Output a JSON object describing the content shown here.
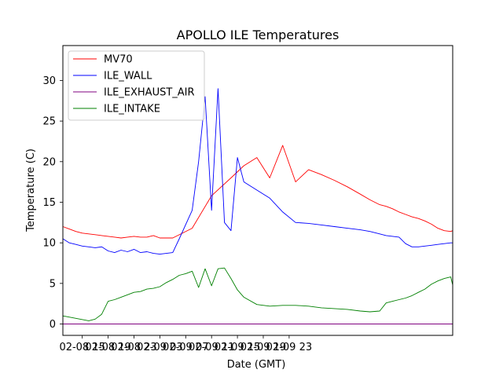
{
  "chart_data": {
    "type": "line",
    "title": "APOLLO ILE Temperatures",
    "xlabel": "Date (GMT)",
    "ylabel": "Temperature (C)",
    "x_unit": "hours since 2008-02-08 12:00 GMT",
    "xlim": [
      0,
      60.3
    ],
    "ylim": [
      -1.4,
      34.3
    ],
    "x_ticks": [
      {
        "value": 3,
        "label": "02-08 15"
      },
      {
        "value": 7,
        "label": "02-08 19"
      },
      {
        "value": 11,
        "label": "02-08 23"
      },
      {
        "value": 15,
        "label": "02-09 03"
      },
      {
        "value": 19,
        "label": "02-09 07"
      },
      {
        "value": 23,
        "label": "02-09 11"
      },
      {
        "value": 27,
        "label": "02-09 15"
      },
      {
        "value": 31,
        "label": "02-09 19"
      },
      {
        "value": 35,
        "label": "02-09 23"
      }
    ],
    "y_ticks": [
      {
        "value": 0,
        "label": "0"
      },
      {
        "value": 5,
        "label": "5"
      },
      {
        "value": 10,
        "label": "10"
      },
      {
        "value": 15,
        "label": "15"
      },
      {
        "value": 20,
        "label": "20"
      },
      {
        "value": 25,
        "label": "25"
      },
      {
        "value": 30,
        "label": "30"
      }
    ],
    "legend_position": "top-left",
    "series": [
      {
        "name": "MV70",
        "color": "#ff0000",
        "x": [
          0,
          1,
          2,
          3,
          4,
          5,
          6,
          7,
          8,
          9,
          10,
          11,
          12,
          13,
          14,
          15,
          17,
          20,
          23,
          26,
          28,
          30,
          32,
          34,
          36,
          38,
          40,
          42,
          44,
          46,
          47.5,
          49,
          50,
          51,
          52,
          53,
          54,
          55,
          56,
          57,
          58,
          59,
          60,
          60.3
        ],
        "values": [
          12.0,
          11.7,
          11.4,
          11.2,
          11.1,
          11.0,
          10.9,
          10.8,
          10.7,
          10.6,
          10.7,
          10.8,
          10.7,
          10.7,
          10.9,
          10.6,
          10.6,
          11.8,
          15.8,
          18.0,
          19.5,
          20.5,
          18.0,
          22.0,
          17.5,
          19.0,
          18.4,
          17.7,
          16.9,
          16.0,
          15.3,
          14.7,
          14.5,
          14.2,
          13.8,
          13.5,
          13.2,
          13.0,
          12.7,
          12.3,
          11.8,
          11.5,
          11.4,
          11.5
        ]
      },
      {
        "name": "ILE_WALL",
        "color": "#0000ff",
        "x": [
          0,
          1,
          2,
          3,
          4,
          5,
          6,
          7,
          8,
          9,
          10,
          11,
          12,
          13,
          14,
          15,
          16,
          17,
          18,
          20,
          21,
          22,
          23,
          24,
          25,
          26,
          27,
          28,
          30,
          32,
          34,
          36,
          38,
          40,
          42,
          44,
          46,
          47.5,
          49,
          50,
          51,
          52,
          53,
          54,
          55,
          56,
          57,
          58,
          59,
          60,
          60.3
        ],
        "values": [
          10.5,
          10.0,
          9.8,
          9.6,
          9.5,
          9.4,
          9.5,
          9.0,
          8.8,
          9.1,
          8.9,
          9.2,
          8.8,
          8.9,
          8.7,
          8.6,
          8.7,
          8.8,
          10.5,
          14.0,
          20.0,
          28.0,
          14.0,
          29.0,
          12.5,
          11.5,
          20.5,
          17.5,
          16.5,
          15.5,
          13.8,
          12.5,
          12.4,
          12.2,
          12.0,
          11.8,
          11.6,
          11.4,
          11.1,
          10.9,
          10.8,
          10.7,
          9.9,
          9.5,
          9.5,
          9.6,
          9.7,
          9.8,
          9.9,
          10.0,
          10.0
        ]
      },
      {
        "name": "ILE_EXHAUST_AIR",
        "color": "#800080",
        "x": [
          0,
          60.3
        ],
        "values": [
          0.0,
          0.0
        ]
      },
      {
        "name": "ILE_INTAKE",
        "color": "#008000",
        "x": [
          0,
          2,
          4,
          5,
          6,
          7,
          8,
          9,
          10,
          11,
          12,
          13,
          14,
          15,
          16,
          17,
          18,
          19,
          20,
          21,
          22,
          23,
          24,
          25,
          26,
          27,
          28,
          30,
          32,
          34,
          36,
          38,
          40,
          42,
          44,
          46,
          47.5,
          49,
          50,
          51,
          52,
          53,
          54,
          55,
          56,
          57,
          58,
          59,
          60,
          60.3
        ],
        "values": [
          1.0,
          0.7,
          0.4,
          0.6,
          1.2,
          2.8,
          3.0,
          3.3,
          3.6,
          3.9,
          4.0,
          4.3,
          4.4,
          4.6,
          5.1,
          5.5,
          6.0,
          6.2,
          6.5,
          4.5,
          6.8,
          4.7,
          6.8,
          6.9,
          5.6,
          4.2,
          3.3,
          2.4,
          2.2,
          2.3,
          2.3,
          2.2,
          2.0,
          1.9,
          1.8,
          1.6,
          1.5,
          1.6,
          2.6,
          2.8,
          3.0,
          3.2,
          3.5,
          3.9,
          4.3,
          4.9,
          5.3,
          5.6,
          5.8,
          4.8
        ]
      }
    ]
  }
}
